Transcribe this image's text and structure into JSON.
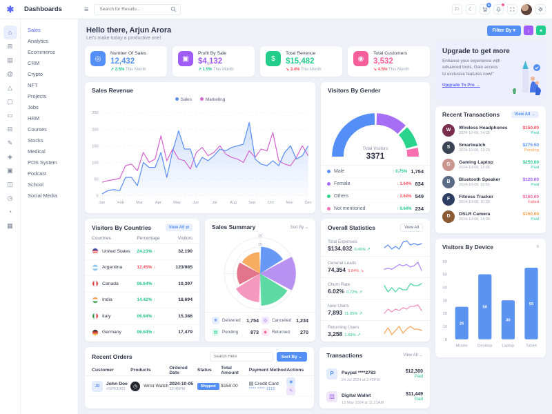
{
  "app": {
    "logo": "✱",
    "title": "Dashboards"
  },
  "topbar": {
    "search_placeholder": "Search for Results...",
    "cart_badge": "5",
    "moon": "☾",
    "flag": "⚐"
  },
  "sidebar": {
    "rail": [
      {
        "name": "home",
        "glyph": "⌂",
        "cls": "active"
      },
      {
        "name": "apps",
        "glyph": "⊞",
        "cls": ""
      },
      {
        "name": "layers",
        "glyph": "▤",
        "cls": ""
      },
      {
        "name": "mentions",
        "glyph": "@",
        "cls": ""
      },
      {
        "name": "nft",
        "glyph": "△",
        "cls": ""
      },
      {
        "name": "projects",
        "glyph": "▢",
        "cls": ""
      },
      {
        "name": "card",
        "glyph": "▭",
        "cls": ""
      },
      {
        "name": "grid",
        "glyph": "⊟",
        "cls": ""
      },
      {
        "name": "pen",
        "glyph": "✎",
        "cls": ""
      },
      {
        "name": "gem",
        "glyph": "◈",
        "cls": ""
      },
      {
        "name": "box",
        "glyph": "▣",
        "cls": ""
      },
      {
        "name": "wallet",
        "glyph": "◫",
        "cls": ""
      },
      {
        "name": "clock",
        "glyph": "◷",
        "cls": ""
      },
      {
        "name": "pie",
        "glyph": "◔",
        "cls": ""
      },
      {
        "name": "table",
        "glyph": "▦",
        "cls": ""
      }
    ],
    "items": [
      {
        "label": "Sales",
        "cls": "active"
      },
      {
        "label": "Analytics",
        "cls": ""
      },
      {
        "label": "Ecommerce",
        "cls": ""
      },
      {
        "label": "CRM",
        "cls": ""
      },
      {
        "label": "Crypto",
        "cls": ""
      },
      {
        "label": "NFT",
        "cls": ""
      },
      {
        "label": "Projects",
        "cls": ""
      },
      {
        "label": "Jobs",
        "cls": ""
      },
      {
        "label": "HRM",
        "cls": ""
      },
      {
        "label": "Courses",
        "cls": ""
      },
      {
        "label": "Stocks",
        "cls": ""
      },
      {
        "label": "Medical",
        "cls": ""
      },
      {
        "label": "POS System",
        "cls": ""
      },
      {
        "label": "Podcast",
        "cls": ""
      },
      {
        "label": "School",
        "cls": ""
      },
      {
        "label": "Social Media",
        "cls": ""
      }
    ]
  },
  "greeting": {
    "title": "Hello there, Arjun Arora",
    "subtitle": "Let's make today a productive one!"
  },
  "filter": {
    "label": "Filter By ▾"
  },
  "stats": [
    {
      "title": "Number Of Sales",
      "value": "12,432",
      "color": "#548ff7",
      "icon": "◎",
      "arrow": "↗",
      "trend": "2.5%",
      "dir": "up",
      "period": "This Month"
    },
    {
      "title": "Profit By Sale",
      "value": "$4,132",
      "color": "#a05cf7",
      "icon": "▣",
      "arrow": "↗",
      "trend": "1.5%",
      "dir": "up",
      "period": "This Month"
    },
    {
      "title": "Total Revenue",
      "value": "$15,482",
      "color": "#23ce8c",
      "icon": "$",
      "arrow": "↘",
      "trend": "3.4%",
      "dir": "down",
      "period": "This Month"
    },
    {
      "title": "Total Customers",
      "value": "3,532",
      "color": "#f75f9b",
      "icon": "◉",
      "arrow": "↘",
      "trend": "4.5%",
      "dir": "down",
      "period": "This Month"
    }
  ],
  "upgrade": {
    "title": "Upgrade to get more",
    "body": "Enhance your experience with advanced tools. Gain access to exclusive features now!\"",
    "link": "Upgrade To Pro →"
  },
  "recent_transactions": {
    "title": "Recent Transactions",
    "view_all": "View All →",
    "items": [
      {
        "name": "Wireless Headphones",
        "date": "2024-10-08, 14:35",
        "glyph": "W",
        "icon_bg": "#7a2e4e",
        "amount": "$150.00",
        "amount_color": "#fb4f5e",
        "status": "Paid",
        "status_color": "#26c6ab"
      },
      {
        "name": "Smartwatch",
        "date": "2024-10-08, 13:20",
        "glyph": "S",
        "icon_bg": "#3a4354",
        "amount": "$275.50",
        "amount_color": "#548ff7",
        "status": "Pending",
        "status_color": "#fb9d4b"
      },
      {
        "name": "Gaming Laptop",
        "date": "2024-10-08, 12:05",
        "glyph": "G",
        "icon_bg": "#c9958e",
        "amount": "$250.00",
        "amount_color": "#23ce8c",
        "status": "Paid",
        "status_color": "#26c6ab"
      },
      {
        "name": "Bluetooth Speaker",
        "date": "2024-10-08, 11:50",
        "glyph": "B",
        "icon_bg": "#5a6b85",
        "amount": "$120.00",
        "amount_color": "#a05cf7",
        "status": "Paid",
        "status_color": "#26c6ab"
      },
      {
        "name": "Fitness Tracker",
        "date": "2024-10-08, 10:30",
        "glyph": "F",
        "icon_bg": "#2e3d62",
        "amount": "$160.00",
        "amount_color": "#f75f9b",
        "status": "Failed",
        "status_color": "#fb4f5e"
      },
      {
        "name": "DSLR Camera",
        "date": "2024-10-08, 14:35",
        "glyph": "D",
        "icon_bg": "#8a5a34",
        "amount": "$150.00",
        "amount_color": "#fb9d4b",
        "status": "Paid",
        "status_color": "#26c6ab"
      }
    ]
  },
  "gender": {
    "title": "Visitors By Gender",
    "center_label": "Total Visitors",
    "center_value": "3371",
    "rows": [
      {
        "label": "Male",
        "color": "#548ff7",
        "arrow": "↑",
        "trend": "0.75%",
        "dir": "up",
        "value": "1,754"
      },
      {
        "label": "Female",
        "color": "#a66ef5",
        "arrow": "↓",
        "trend": "1.64%",
        "dir": "down",
        "value": "834"
      },
      {
        "label": "Others",
        "color": "#2bd48c",
        "arrow": "↓",
        "trend": "2.64%",
        "dir": "down",
        "value": "549"
      },
      {
        "label": "Not mentioned",
        "color": "#f66eb0",
        "arrow": "↑",
        "trend": "0.64%",
        "dir": "up",
        "value": "234"
      }
    ]
  },
  "countries": {
    "title": "Visitors By Countries",
    "view_all": "View All ⇄",
    "columns": [
      "Countries",
      "Percentage",
      "Visitors"
    ],
    "rows": [
      {
        "country": "United States",
        "flag_class": "flag-us",
        "pct": "24.23%",
        "arrow": "↑",
        "dir": "up",
        "visitors": "32,190"
      },
      {
        "country": "Argentina",
        "flag_class": "flag-ar",
        "pct": "12.45%",
        "arrow": "↓",
        "dir": "down",
        "visitors": "123/985"
      },
      {
        "country": "Canada",
        "flag_class": "flag-ca",
        "pct": "06.64%",
        "arrow": "↑",
        "dir": "up",
        "visitors": "10,397"
      },
      {
        "country": "India",
        "flag_class": "flag-in",
        "pct": "14.42%",
        "arrow": "↑",
        "dir": "up",
        "visitors": "18,694"
      },
      {
        "country": "Italy",
        "flag_class": "flag-it",
        "pct": "06.64%",
        "arrow": "↑",
        "dir": "up",
        "visitors": "15,386"
      },
      {
        "country": "Germany",
        "flag_class": "flag-de",
        "pct": "06.64%",
        "arrow": "↑",
        "dir": "up",
        "visitors": "17,479"
      }
    ]
  },
  "sales_summary": {
    "title": "Sales Summary",
    "sort_by": "Sort By ⌄",
    "legend": [
      {
        "label": "Delivered",
        "value": "1,754",
        "glyph": "❋",
        "color": "#548ff7",
        "bg": "#e7eefc"
      },
      {
        "label": "Cancelled",
        "value": "1,234",
        "glyph": "◎",
        "color": "#a05cf7",
        "bg": "#f1e9fd"
      },
      {
        "label": "Pending",
        "value": "873",
        "glyph": "▤",
        "color": "#23ce8c",
        "bg": "#e4f9f0"
      },
      {
        "label": "Returned",
        "value": "270",
        "glyph": "◆",
        "color": "#f75f9b",
        "bg": "#fde9f1"
      }
    ]
  },
  "overall_stats": {
    "title": "Overall Statistics",
    "view_all": "View All",
    "items": [
      {
        "label": "Total Expenses",
        "value": "$134,032",
        "trend": "0.45%",
        "arrow": "↗",
        "dir": "up"
      },
      {
        "label": "General Leads",
        "value": "74,354",
        "trend": "3.84%",
        "arrow": "↘",
        "dir": "down"
      },
      {
        "label": "Churn Rate",
        "value": "6.02%",
        "trend": "0.72%",
        "arrow": "↗",
        "dir": "up"
      },
      {
        "label": "New Users",
        "value": "7,893",
        "trend": "11.05%",
        "arrow": "↗",
        "dir": "up"
      },
      {
        "label": "Returning Users",
        "value": "3,258",
        "trend": "1.69%",
        "arrow": "↗",
        "dir": "up"
      }
    ]
  },
  "device": {
    "title": "Visitors By Device",
    "menu_icon": "≡"
  },
  "orders": {
    "title": "Recent Orders",
    "search_placeholder": "Search Here",
    "sort_by": "Sort By ⌄",
    "columns": [
      "Customer",
      "Products",
      "Ordered Date",
      "Status",
      "Total Amount",
      "Payment Method",
      "Actions"
    ],
    "rows": [
      {
        "avatar": "JD",
        "name": "John Doe",
        "id": "#SPK1001",
        "product": "Wrist Watch",
        "product_glyph": "◷",
        "date": "2024-10-05",
        "time": "12:45PM",
        "status": "Shipped",
        "amount": "$150.00",
        "payment": "▤ Credit Card",
        "masked": "**** **** 1111",
        "view_glyph": "◉",
        "edit_glyph": "✎"
      }
    ]
  },
  "transactions": {
    "title": "Transactions",
    "view_all": "View All →",
    "items": [
      {
        "name": "Paypal ****2783",
        "date": "24 Jul 2024 at 2:45PM",
        "glyph": "P",
        "icon_bg": "#e3ecfd",
        "icon_color": "#548ff7",
        "amount": "$12,300",
        "status": "Paid"
      },
      {
        "name": "Digital Wallet",
        "date": "13 May 2024 at 11:21AM",
        "glyph": "◫",
        "icon_bg": "#f0e7fd",
        "icon_color": "#a05cf7",
        "amount": "$11,449",
        "status": "Paid"
      }
    ]
  },
  "chart_data": [
    {
      "type": "line",
      "title": "Sales Revenue",
      "x": [
        "Jan",
        "Feb",
        "Mar",
        "Apr",
        "May",
        "Jun",
        "Jul",
        "Aug",
        "Sep",
        "Oct",
        "Nov",
        "Dec"
      ],
      "ylim": [
        0,
        250
      ],
      "yticks": [
        0,
        50,
        100,
        150,
        200,
        250
      ],
      "grid": "dashed-horizontal",
      "legend_position": "top",
      "series": [
        {
          "name": "Sales",
          "color": "#5b8ff5",
          "area": true,
          "values": [
            5,
            15,
            18,
            15,
            55,
            55,
            30,
            100,
            85,
            85,
            130,
            55,
            135,
            195,
            140,
            140,
            85,
            115,
            105,
            120,
            140,
            135,
            145,
            150,
            155,
            220,
            110,
            95,
            90,
            105,
            90,
            130,
            150,
            110,
            120,
            150
          ]
        },
        {
          "name": "Marketing",
          "color": "#d465cf",
          "area": false,
          "values": [
            40,
            45,
            48,
            52,
            90,
            95,
            75,
            130,
            100,
            110,
            180,
            105,
            140,
            110,
            105,
            80,
            130,
            145,
            120,
            130,
            150,
            125,
            115,
            110,
            100,
            135,
            115,
            140,
            135,
            190,
            105,
            95,
            90,
            115,
            150,
            120
          ]
        }
      ]
    },
    {
      "type": "pie",
      "variant": "semi-donut",
      "title": "Visitors By Gender",
      "labels": [
        "Male",
        "Female",
        "Others",
        "Not mentioned"
      ],
      "values": [
        1754,
        834,
        549,
        234
      ],
      "total": 3371,
      "colors": [
        "#548ff7",
        "#a66ef5",
        "#2bd48c",
        "#f66eb0"
      ]
    },
    {
      "type": "pie",
      "variant": "polar-rose",
      "title": "Sales Summary",
      "labels": [
        "Delivered",
        "Cancelled",
        "Pending",
        "Returned",
        "slice-5",
        "slice-6"
      ],
      "values": [
        15,
        20,
        18,
        16,
        13,
        12
      ],
      "rmax": 20,
      "rticks": [
        5,
        10,
        15,
        20
      ],
      "rtick_labels": [
        "15",
        "20"
      ],
      "colors": [
        "#5b8ff5",
        "#b388f2",
        "#4fd69c",
        "#f48fb9",
        "#e0697f",
        "#f7a554"
      ],
      "legend_values": {
        "Delivered": 1754,
        "Cancelled": 1234,
        "Pending": 873,
        "Returned": 270
      }
    },
    {
      "type": "bar",
      "title": "Visitors By Device",
      "categories": [
        "Mobile",
        "Desktop",
        "Laptop",
        "Tablet"
      ],
      "values": [
        25,
        50,
        30,
        55
      ],
      "ylim": [
        0,
        60
      ],
      "yticks": [
        0,
        10,
        20,
        30,
        40,
        50,
        60
      ],
      "color": "#5b93f0",
      "grid": "off"
    },
    {
      "type": "line",
      "variant": "sparklines",
      "title": "Overall Statistics",
      "series": [
        {
          "name": "Total Expenses",
          "color": "#5b8ff5",
          "values": [
            5,
            7,
            4,
            6,
            4,
            9,
            10,
            7,
            8,
            7,
            8
          ]
        },
        {
          "name": "General Leads",
          "color": "#b388f2",
          "values": [
            3,
            4,
            3,
            5,
            7,
            6,
            7,
            5,
            6,
            9,
            2
          ]
        },
        {
          "name": "Churn Rate",
          "color": "#4fd69c",
          "values": [
            7,
            4,
            6,
            4,
            6,
            5,
            5,
            8,
            7,
            7,
            8
          ]
        },
        {
          "name": "New Users",
          "color": "#f48fb9",
          "values": [
            3,
            6,
            4,
            6,
            5,
            7,
            6,
            8,
            8,
            9,
            5
          ]
        },
        {
          "name": "Returning Users",
          "color": "#f7a554",
          "values": [
            4,
            8,
            3,
            6,
            9,
            4,
            7,
            9,
            7,
            7,
            6
          ]
        }
      ]
    }
  ]
}
